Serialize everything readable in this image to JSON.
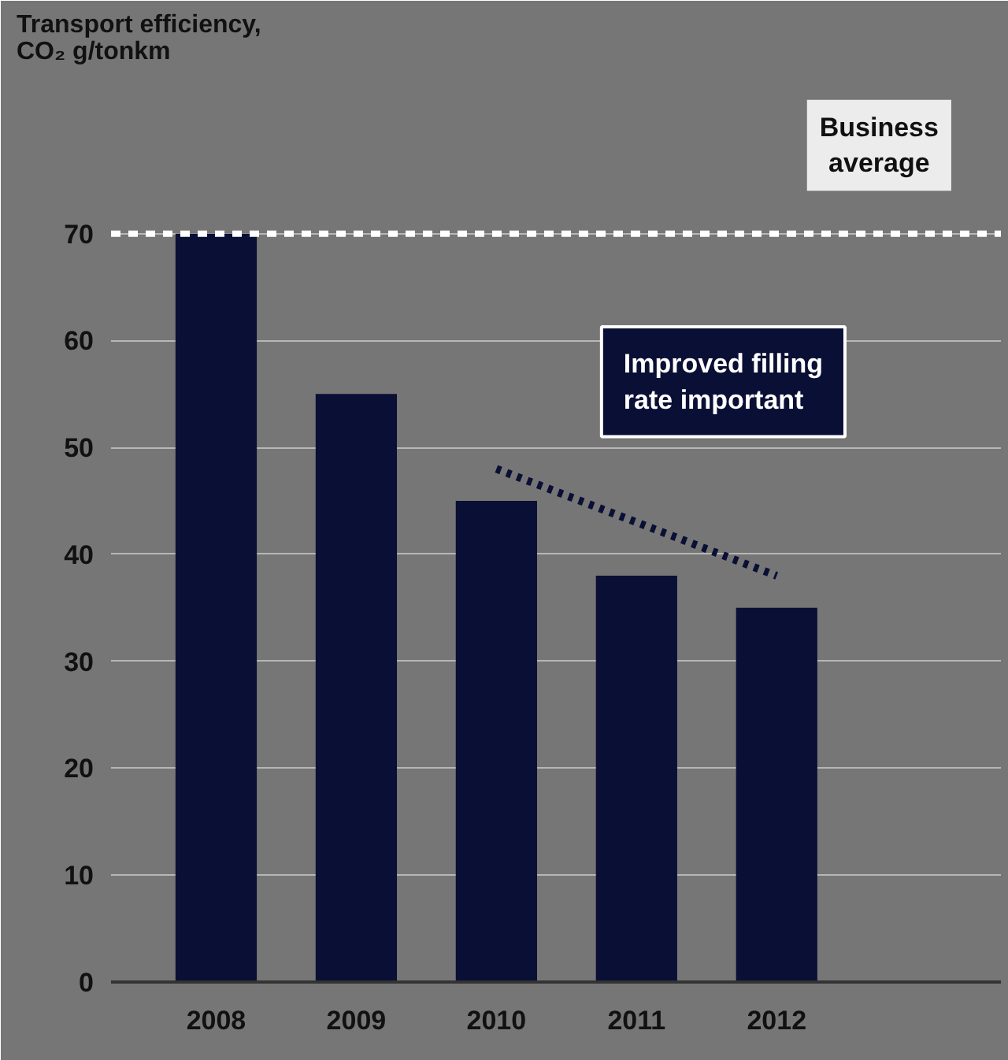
{
  "chart_data": {
    "type": "bar",
    "ylabel": "Transport efficiency,\nCO₂ g/tonkm",
    "categories": [
      "2008",
      "2009",
      "2010",
      "2011",
      "2012"
    ],
    "series": [
      {
        "color": "#0a0f35",
        "values": [
          70,
          55,
          45,
          38,
          35
        ]
      },
      {
        "type": "line",
        "color": "#0a0f35",
        "line_style": "dotted",
        "values": [
          null,
          null,
          48,
          null,
          38
        ]
      }
    ],
    "ylim": [
      0,
      85
    ],
    "yticks": [
      0,
      10,
      20,
      30,
      40,
      50,
      60,
      70
    ],
    "grid": "y",
    "ref_lines": [
      {
        "axis": "y",
        "value": 70,
        "label": "Business average",
        "color": "#ffffff",
        "line_style": "dashed"
      }
    ],
    "annotations": [
      "Improved filling rate important"
    ]
  }
}
